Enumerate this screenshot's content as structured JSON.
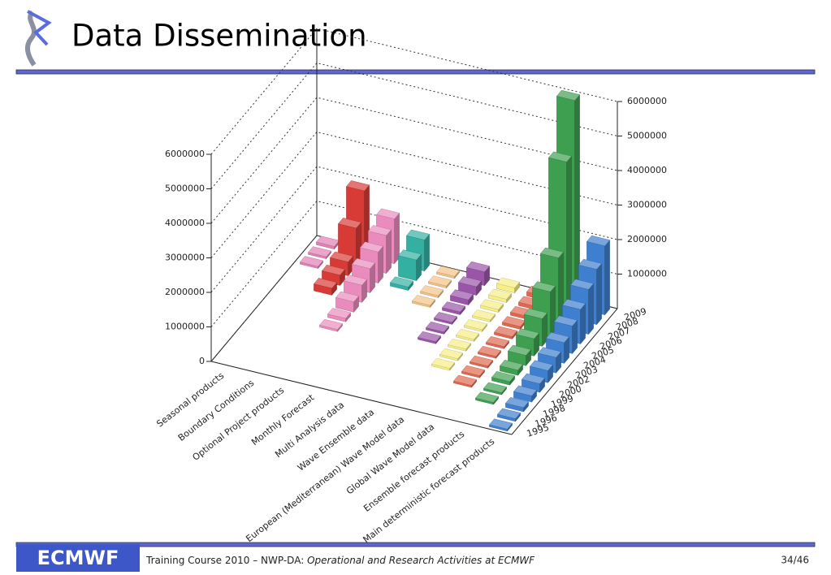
{
  "header": {
    "title": "Data Dissemination"
  },
  "footer": {
    "logo": "ECMWF",
    "course": "Training Course 2010 – NWP-DA: ",
    "subject": "Operational and Research Activities at ECMWF",
    "page": "34/46"
  },
  "chart_data": {
    "type": "bar3d",
    "categories": [
      "1995",
      "1996",
      "1998",
      "1999",
      "2000",
      "2002",
      "2003",
      "2004",
      "2005",
      "2006",
      "2007",
      "2008",
      "2009"
    ],
    "series": [
      {
        "name": "Seasonal products",
        "color": "#e27fb4",
        "values": [
          null,
          null,
          null,
          null,
          null,
          null,
          null,
          null,
          null,
          null,
          30000,
          50000,
          80000
        ]
      },
      {
        "name": "Boundary Conditions",
        "color": "#d83a36",
        "values": [
          null,
          null,
          null,
          null,
          null,
          null,
          null,
          null,
          200000,
          300000,
          400000,
          1100000,
          1900000
        ]
      },
      {
        "name": "Optional Project products",
        "color": "#e98cbd",
        "values": [
          null,
          null,
          null,
          null,
          null,
          30000,
          100000,
          300000,
          500000,
          700000,
          900000,
          1100000,
          1300000
        ]
      },
      {
        "name": "Monthly Forecast",
        "color": "#33b0a2",
        "values": [
          null,
          null,
          null,
          null,
          null,
          null,
          null,
          null,
          null,
          null,
          100000,
          600000,
          900000
        ]
      },
      {
        "name": "Multi Analysis data",
        "color": "#f3c186",
        "values": [
          null,
          null,
          null,
          null,
          null,
          null,
          null,
          null,
          null,
          10000,
          20000,
          30000,
          40000
        ]
      },
      {
        "name": "Wave Ensemble data",
        "color": "#9a55a8",
        "values": [
          null,
          null,
          null,
          null,
          null,
          null,
          20000,
          30000,
          50000,
          80000,
          150000,
          250000,
          400000
        ]
      },
      {
        "name": "European (Mediterranean) Wave Model data",
        "color": "#f6ee86",
        "values": [
          null,
          null,
          null,
          null,
          10000,
          20000,
          30000,
          40000,
          50000,
          60000,
          80000,
          100000,
          150000
        ]
      },
      {
        "name": "Global Wave Model data",
        "color": "#e0674f",
        "values": [
          null,
          null,
          null,
          20000,
          30000,
          40000,
          50000,
          60000,
          70000,
          80000,
          90000,
          100000,
          120000
        ]
      },
      {
        "name": "Ensemble forecast products",
        "color": "#3f9f50",
        "values": [
          null,
          null,
          30000,
          60000,
          100000,
          150000,
          300000,
          500000,
          800000,
          1300000,
          2000000,
          4500000,
          6000000
        ]
      },
      {
        "name": "Main deterministic forecast products",
        "color": "#3f7fcf",
        "values": [
          50000,
          80000,
          120000,
          180000,
          250000,
          350000,
          450000,
          600000,
          800000,
          1000000,
          1300000,
          1600000,
          2000000
        ]
      }
    ],
    "ylim": [
      0,
      6000000
    ],
    "yticks": [
      0,
      1000000,
      2000000,
      3000000,
      4000000,
      5000000,
      6000000
    ],
    "grid": true
  }
}
